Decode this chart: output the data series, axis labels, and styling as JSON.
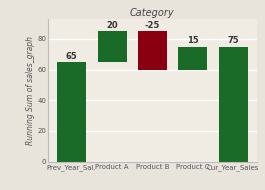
{
  "categories": [
    "Prev_Year_Sal.",
    "Product A",
    "Product B",
    "Product C",
    "Cur_Year_Sales"
  ],
  "bar_bottoms": [
    0,
    65,
    60,
    60,
    0
  ],
  "bar_heights": [
    65,
    20,
    25,
    15,
    75
  ],
  "bar_values": [
    65,
    20,
    -25,
    15,
    75
  ],
  "bar_colors": [
    "#1b6b28",
    "#1b6b28",
    "#8b0010",
    "#1b6b28",
    "#1b6b28"
  ],
  "title": "Category",
  "ylabel": "Running Sum of sales_graph",
  "ylim": [
    0,
    93
  ],
  "yticks": [
    0,
    20,
    40,
    60,
    80
  ],
  "title_fontsize": 7,
  "label_fontsize": 5.5,
  "tick_fontsize": 5,
  "value_fontsize": 6,
  "bg_color": "#e8e4db",
  "plot_bg_color": "#f0ece4"
}
